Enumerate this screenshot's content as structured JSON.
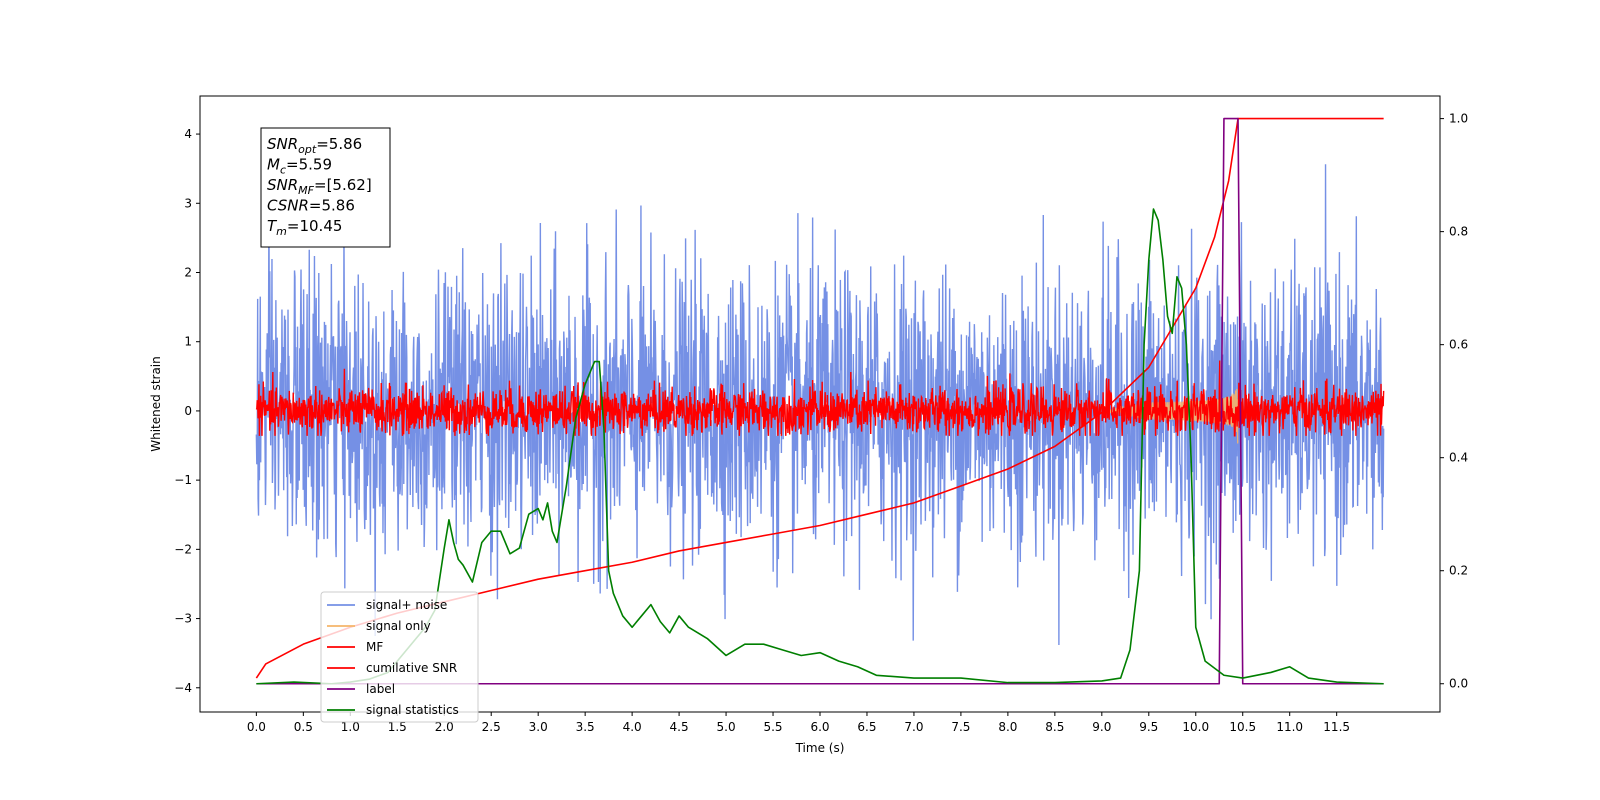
{
  "chart_data": {
    "type": "line",
    "xlabel": "Time (s)",
    "ylabel": "Whitened strain",
    "xlim": [
      -0.6,
      12.6
    ],
    "ylim": [
      -4.35,
      4.55
    ],
    "y2lim": [
      -0.05,
      1.04
    ],
    "grid": false,
    "legend_position": "lower-left",
    "x_ticks": [
      0.0,
      0.5,
      1.0,
      1.5,
      2.0,
      2.5,
      3.0,
      3.5,
      4.0,
      4.5,
      5.0,
      5.5,
      6.0,
      6.5,
      7.0,
      7.5,
      8.0,
      8.5,
      9.0,
      9.5,
      10.0,
      10.5,
      11.0,
      11.5
    ],
    "x_tick_labels": [
      "0.0",
      "0.5",
      "1.0",
      "1.5",
      "2.0",
      "2.5",
      "3.0",
      "3.5",
      "4.0",
      "4.5",
      "5.0",
      "5.5",
      "6.0",
      "6.5",
      "7.0",
      "7.5",
      "8.0",
      "8.5",
      "9.0",
      "9.5",
      "10.0",
      "10.5",
      "11.0",
      "11.5"
    ],
    "y_ticks": [
      -4,
      -3,
      -2,
      -1,
      0,
      1,
      2,
      3,
      4
    ],
    "y_tick_labels": [
      "−4",
      "−3",
      "−2",
      "−1",
      "0",
      "1",
      "2",
      "3",
      "4"
    ],
    "y2_ticks": [
      0.0,
      0.2,
      0.4,
      0.6,
      0.8,
      1.0
    ],
    "y2_tick_labels": [
      "0.0",
      "0.2",
      "0.4",
      "0.6",
      "0.8",
      "1.0"
    ],
    "info_box": [
      {
        "main": "SNR",
        "sub": "opt",
        "value": "=5.86"
      },
      {
        "main": "M",
        "sub": "c",
        "value": "=5.59"
      },
      {
        "main": "SNR",
        "sub": "MF",
        "value": "=[5.62]"
      },
      {
        "main": "CSNR",
        "sub": "",
        "value": "=5.86"
      },
      {
        "main": "T",
        "sub": "m",
        "value": "=10.45"
      }
    ],
    "legend": [
      {
        "label": "signal+ noise",
        "color": "#7590e5"
      },
      {
        "label": "signal only",
        "color": "#f5b56a"
      },
      {
        "label": "MF",
        "color": "#ff0000"
      },
      {
        "label": "cumilative SNR",
        "color": "#ff0000"
      },
      {
        "label": "label",
        "color": "#800080"
      },
      {
        "label": "signal statistics",
        "color": "#007f00"
      }
    ],
    "series": [
      {
        "name": "signal+ noise",
        "axis": "left",
        "color": "#7590e5",
        "kind": "noise",
        "x_range": [
          0.0,
          12.0
        ],
        "center": 0.0,
        "sigma": 1.0,
        "max": 4.17,
        "min": -3.95
      },
      {
        "name": "signal only",
        "axis": "left",
        "color": "#f5b56a",
        "kind": "chirp",
        "x_range": [
          9.0,
          10.45
        ],
        "peak_amplitude": 0.48,
        "peak_x": 10.45
      },
      {
        "name": "MF",
        "axis": "left",
        "color": "#ff0000",
        "kind": "noise",
        "x_range": [
          0.0,
          12.0
        ],
        "center": 0.0,
        "sigma": 0.17,
        "max": 1.0,
        "min": -0.36
      },
      {
        "name": "cumilative SNR",
        "axis": "right",
        "color": "#ff0000",
        "x": [
          0.0,
          0.1,
          0.5,
          1.0,
          1.5,
          2.0,
          2.5,
          3.0,
          3.5,
          4.0,
          4.5,
          5.0,
          5.5,
          6.0,
          6.5,
          7.0,
          7.5,
          8.0,
          8.5,
          9.0,
          9.5,
          10.0,
          10.2,
          10.35,
          10.45,
          11.0,
          11.5,
          12.0
        ],
        "y": [
          0.01,
          0.035,
          0.07,
          0.1,
          0.125,
          0.145,
          0.165,
          0.185,
          0.2,
          0.215,
          0.235,
          0.25,
          0.265,
          0.28,
          0.3,
          0.32,
          0.35,
          0.38,
          0.42,
          0.48,
          0.56,
          0.7,
          0.79,
          0.89,
          1.0,
          1.0,
          1.0,
          1.0
        ]
      },
      {
        "name": "label",
        "axis": "right",
        "color": "#800080",
        "x": [
          0.0,
          10.25,
          10.3,
          10.45,
          10.5,
          12.0
        ],
        "y": [
          0.0,
          0.0,
          1.0,
          1.0,
          0.0,
          0.0
        ]
      },
      {
        "name": "signal statistics",
        "axis": "right",
        "color": "#007f00",
        "x": [
          0.0,
          0.4,
          0.8,
          1.0,
          1.2,
          1.4,
          1.5,
          1.7,
          1.8,
          1.9,
          2.0,
          2.05,
          2.1,
          2.15,
          2.2,
          2.3,
          2.4,
          2.5,
          2.6,
          2.7,
          2.8,
          2.9,
          3.0,
          3.05,
          3.1,
          3.15,
          3.2,
          3.3,
          3.4,
          3.5,
          3.6,
          3.65,
          3.7,
          3.75,
          3.8,
          3.9,
          4.0,
          4.1,
          4.2,
          4.3,
          4.4,
          4.5,
          4.6,
          4.8,
          5.0,
          5.2,
          5.4,
          5.6,
          5.8,
          6.0,
          6.2,
          6.4,
          6.6,
          7.0,
          7.5,
          8.0,
          8.5,
          9.0,
          9.2,
          9.3,
          9.4,
          9.45,
          9.5,
          9.55,
          9.6,
          9.65,
          9.7,
          9.75,
          9.8,
          9.85,
          9.9,
          9.95,
          10.0,
          10.1,
          10.3,
          10.5,
          10.8,
          11.0,
          11.1,
          11.2,
          11.5,
          12.0
        ],
        "y": [
          0.0,
          0.003,
          0.0,
          0.003,
          0.008,
          0.02,
          0.04,
          0.08,
          0.1,
          0.13,
          0.24,
          0.29,
          0.25,
          0.22,
          0.21,
          0.18,
          0.25,
          0.27,
          0.27,
          0.23,
          0.24,
          0.3,
          0.31,
          0.29,
          0.32,
          0.27,
          0.25,
          0.35,
          0.47,
          0.53,
          0.57,
          0.57,
          0.45,
          0.2,
          0.16,
          0.12,
          0.1,
          0.12,
          0.14,
          0.11,
          0.09,
          0.12,
          0.1,
          0.08,
          0.05,
          0.07,
          0.07,
          0.06,
          0.05,
          0.055,
          0.04,
          0.03,
          0.015,
          0.01,
          0.01,
          0.002,
          0.002,
          0.005,
          0.01,
          0.06,
          0.2,
          0.6,
          0.75,
          0.84,
          0.82,
          0.75,
          0.65,
          0.62,
          0.72,
          0.7,
          0.6,
          0.4,
          0.1,
          0.04,
          0.015,
          0.01,
          0.02,
          0.03,
          0.02,
          0.01,
          0.003,
          0.0
        ]
      }
    ]
  }
}
